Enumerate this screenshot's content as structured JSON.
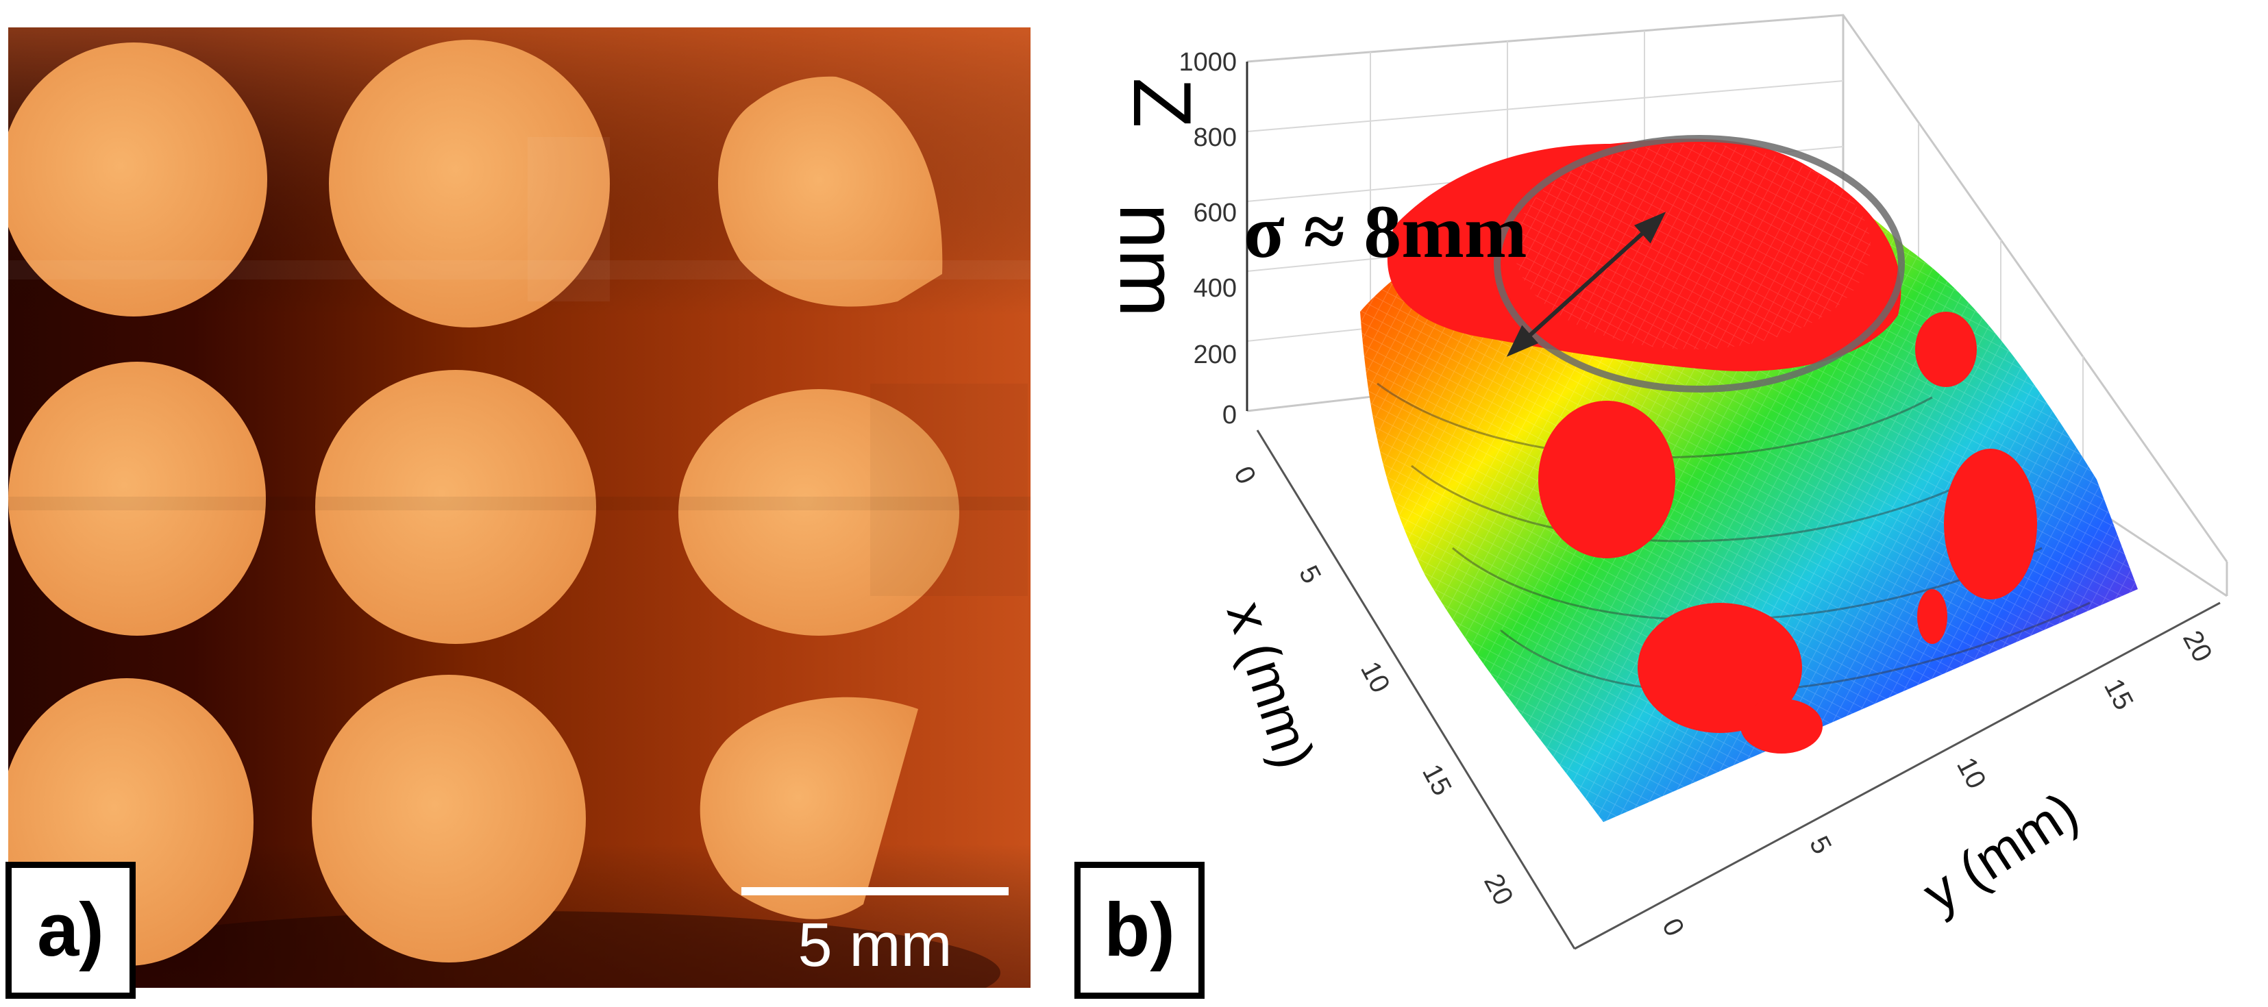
{
  "figure": {
    "panel_a": {
      "label": "a)",
      "scale_bar_text": "5 mm",
      "colors": {
        "background_dark": "#5a1300",
        "background_light": "#c8501a",
        "dot": "#f0a05a"
      }
    },
    "panel_b": {
      "label": "b)",
      "z_axis_title": "Z",
      "z_axis_unit": "nm",
      "z_ticks": [
        "1000",
        "800",
        "600",
        "400",
        "200",
        "0"
      ],
      "x_axis_title": "x (mm)",
      "x_ticks": [
        "0",
        "5",
        "10",
        "15",
        "20"
      ],
      "y_axis_title": "y (mm)",
      "y_ticks": [
        "0",
        "5",
        "10",
        "15",
        "20"
      ],
      "annotation": "σ ≈ 8mm",
      "colors": {
        "overlay": "#ff1a1a",
        "grid": "#c8c8c8",
        "ring": "#6a6a6a"
      }
    }
  }
}
